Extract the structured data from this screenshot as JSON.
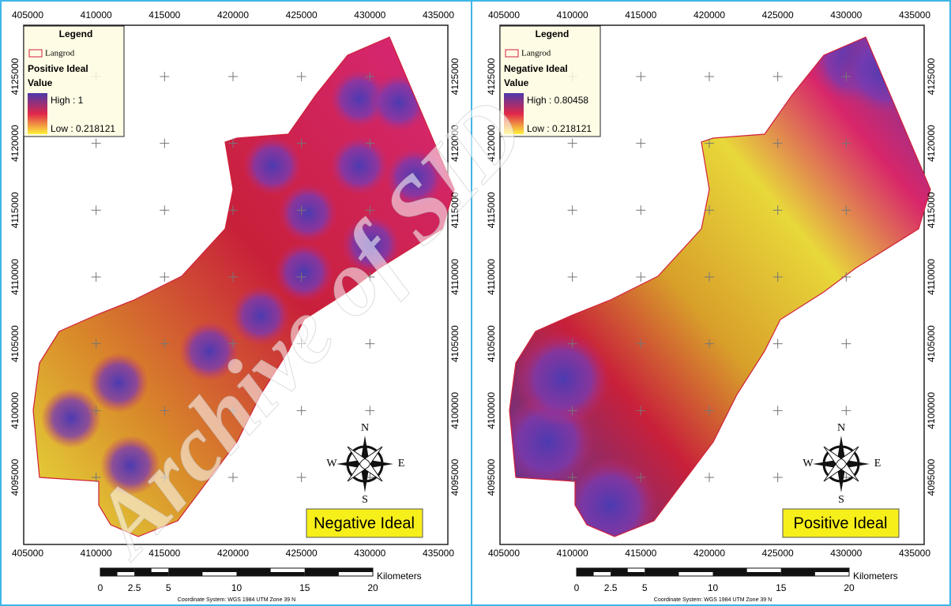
{
  "axes": {
    "x_ticks": [
      405000,
      410000,
      415000,
      420000,
      425000,
      430000,
      435000
    ],
    "y_ticks": [
      4095000,
      4100000,
      4105000,
      4110000,
      4115000,
      4120000,
      4125000
    ]
  },
  "panels": [
    {
      "legend": {
        "title": "Legend",
        "layer": "Langrod",
        "field": "Positive Ideal",
        "field_sub": "Value",
        "high": "High : 1",
        "low": "Low : 0.218121"
      },
      "label": "Negative Ideal"
    },
    {
      "legend": {
        "title": "Legend",
        "layer": "Langrod",
        "field": "Negative Ideal",
        "field_sub": "Value",
        "high": "High : 0.80458",
        "low": "Low : 0.218121"
      },
      "label": "Positive Ideal"
    }
  ],
  "compass": {
    "n": "N",
    "s": "S",
    "e": "E",
    "w": "W"
  },
  "scale_bar": {
    "ticks": [
      0,
      2.5,
      5,
      10,
      15,
      20
    ],
    "unit": "Kilometers"
  },
  "coordinate_system": "Coordinate System: WGS 1984 UTM Zone 39 N",
  "watermark": "Archive of SID"
}
